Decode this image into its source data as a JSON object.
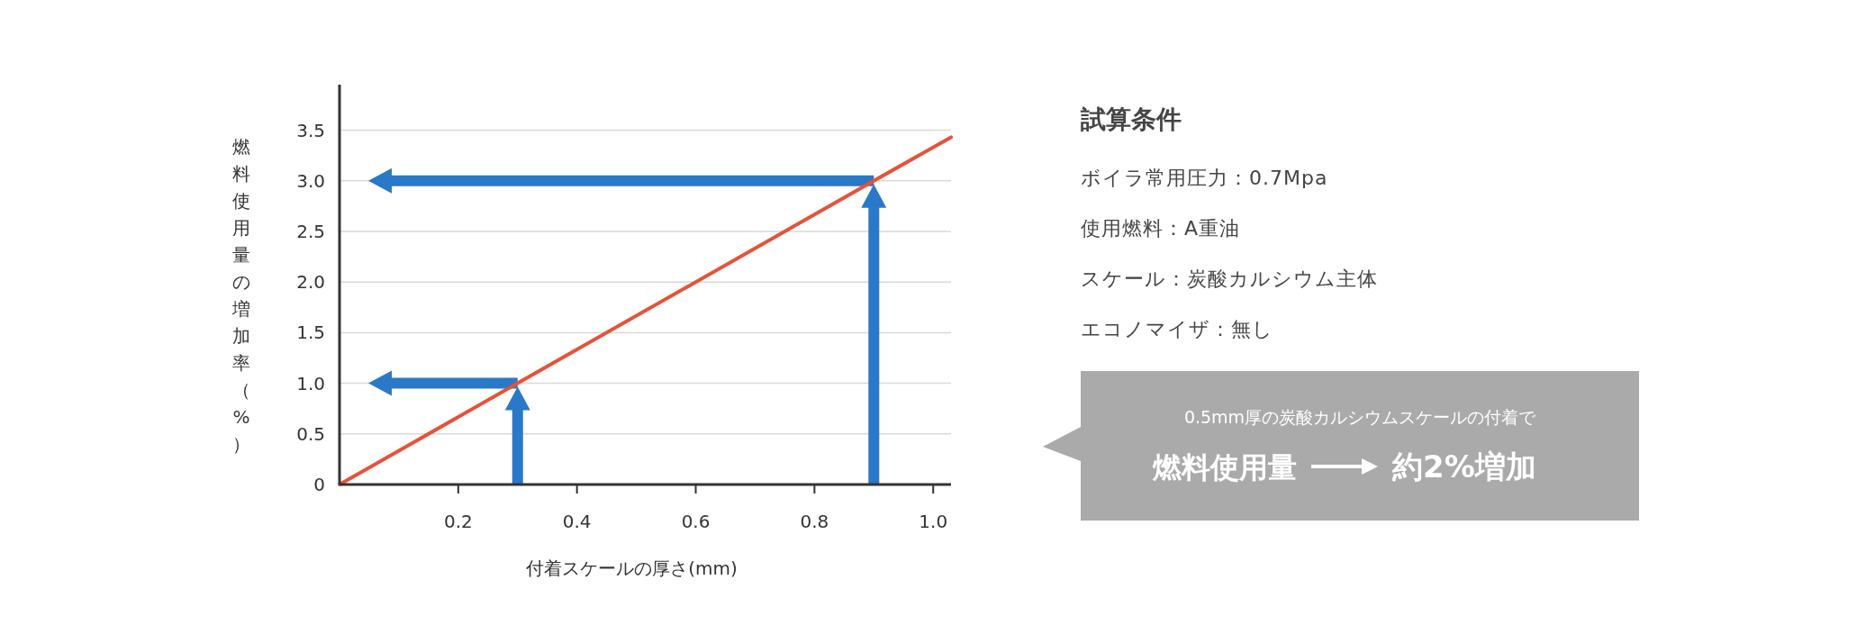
{
  "chart_data": [
    {
      "type": "line",
      "xlabel": "付着スケールの厚さ(mm)",
      "ylabel": "燃料使用量の増加率（%）",
      "x": [
        0,
        0.3,
        0.9,
        1.03
      ],
      "series": [
        {
          "color": "#e5533a",
          "values": [
            0,
            1.0,
            3.0,
            3.43
          ]
        }
      ],
      "xlim": [
        0,
        1.03
      ],
      "ylim": [
        0,
        3.95
      ],
      "xticks": [
        0.2,
        0.4,
        0.6,
        0.8,
        {
          "value": 1,
          "label": "1.0"
        }
      ],
      "yticks": [
        0,
        0.5,
        {
          "value": 1,
          "label": "1.0"
        },
        1.5,
        {
          "value": 2,
          "label": "2.0"
        },
        2.5,
        {
          "value": 3,
          "label": "3.0"
        },
        3.5
      ],
      "grid": "y"
    },
    {
      "type": "other",
      "title": "試算条件",
      "annotations": [
        "ボイラ常用圧力：0.7Mpa",
        "使用燃料：A重油",
        "スケール：炭酸カルシウム主体",
        "エコノマイザ：無し",
        "0.5mm厚の炭酸カルシウムスケールの付着で",
        "燃料使用量",
        "約2%増加"
      ]
    }
  ]
}
